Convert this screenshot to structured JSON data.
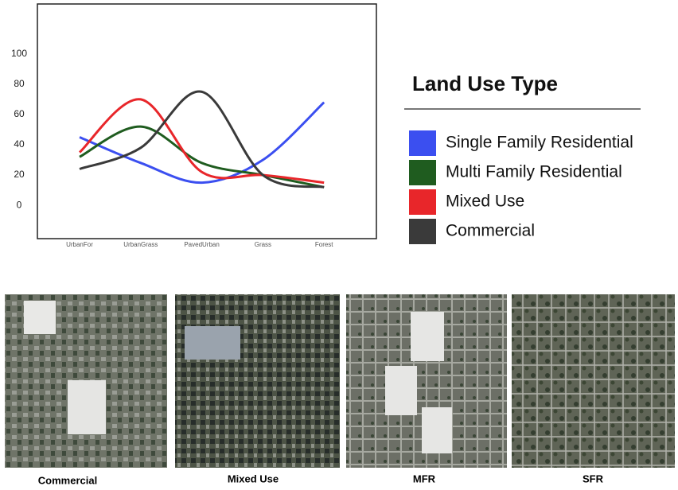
{
  "chart_data": {
    "type": "line",
    "legend_title": "Land Use Type",
    "categories": [
      "UrbanFor",
      "UrbanGrass",
      "PavedUrban",
      "Grass",
      "Forest"
    ],
    "series": [
      {
        "name": "Single Family Residential",
        "color": "#3b4ff0",
        "values": [
          45,
          28,
          15,
          30,
          68
        ]
      },
      {
        "name": "Multi Family Residential",
        "color": "#1f5c1f",
        "values": [
          32,
          52,
          28,
          20,
          12
        ]
      },
      {
        "name": "Mixed Use",
        "color": "#e8262a",
        "values": [
          35,
          70,
          22,
          20,
          15
        ]
      },
      {
        "name": "Commercial",
        "color": "#3a3a3a",
        "values": [
          24,
          38,
          75,
          20,
          12
        ]
      }
    ],
    "ylim": [
      -22,
      133
    ],
    "yticks": [
      0,
      20,
      40,
      60,
      80,
      100
    ],
    "grid": false,
    "legend": "right"
  },
  "images": [
    {
      "label": "Commercial"
    },
    {
      "label": "Mixed Use"
    },
    {
      "label": "MFR"
    },
    {
      "label": "SFR"
    }
  ]
}
